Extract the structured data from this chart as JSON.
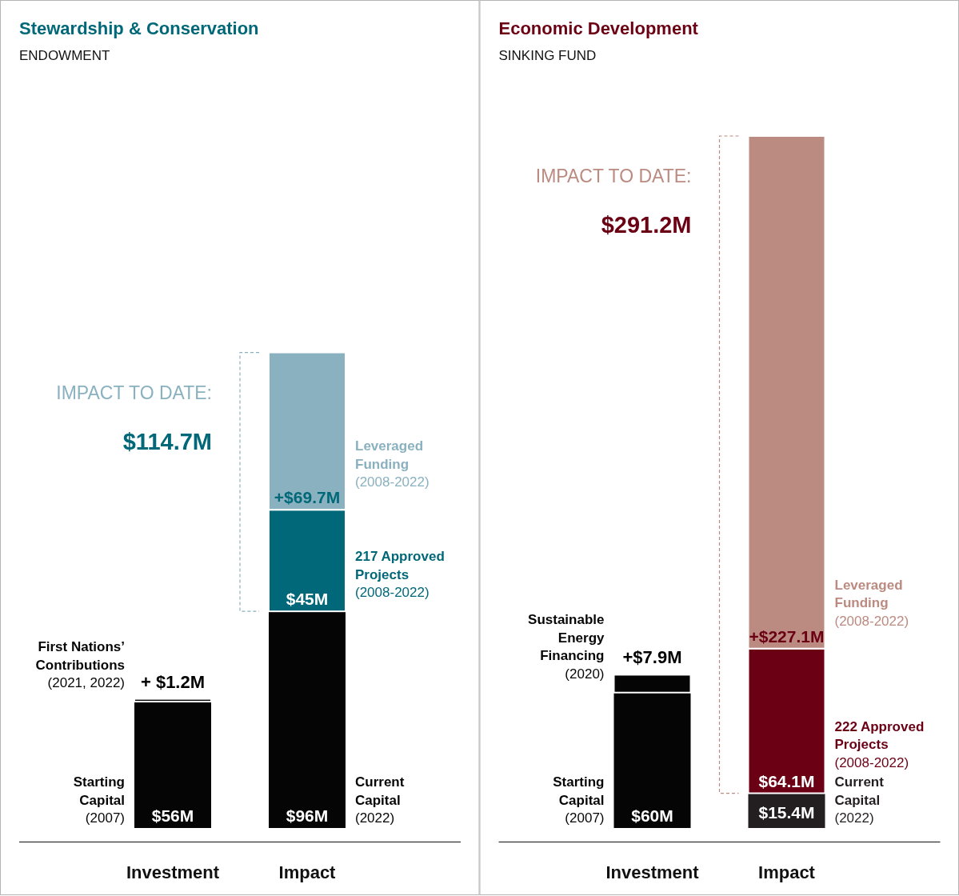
{
  "chart_data": [
    {
      "type": "bar",
      "title": "Stewardship & Conservation",
      "subtitle": "ENDOWMENT",
      "categories": [
        "Investment",
        "Impact"
      ],
      "stacked": true,
      "annotations": [
        "IMPACT TO DATE:",
        "$114.7M"
      ],
      "series": [
        {
          "name": "Starting Capital (2007)",
          "color": "#050505",
          "values": [
            56,
            null
          ],
          "value_labels": [
            "$56M",
            null
          ]
        },
        {
          "name": "Current Capital (2022)",
          "color": "#050505",
          "values": [
            null,
            96
          ],
          "value_labels": [
            null,
            "$96M"
          ]
        },
        {
          "name": "First Nations’ Contributions (2021, 2022)",
          "color": "#050505",
          "values": [
            1.2,
            null
          ],
          "value_labels": [
            "+ $1.2M",
            null
          ]
        },
        {
          "name": "217 Approved Projects (2008-2022)",
          "color": "#006878",
          "values": [
            null,
            45
          ],
          "value_labels": [
            null,
            "$45M"
          ]
        },
        {
          "name": "Leveraged Funding (2008-2022)",
          "color": "#8ab1bf",
          "values": [
            null,
            69.7
          ],
          "value_labels": [
            null,
            "+$69.7M"
          ]
        }
      ]
    },
    {
      "type": "bar",
      "title": "Economic Development",
      "subtitle": "SINKING FUND",
      "categories": [
        "Investment",
        "Impact"
      ],
      "stacked": true,
      "annotations": [
        "IMPACT TO DATE:",
        "$291.2M"
      ],
      "series": [
        {
          "name": "Starting Capital (2007)",
          "color": "#050505",
          "values": [
            60,
            null
          ],
          "value_labels": [
            "$60M",
            null
          ]
        },
        {
          "name": "Current Capital (2022)",
          "color": "#231f20",
          "values": [
            null,
            15.4
          ],
          "value_labels": [
            null,
            "$15.4M"
          ]
        },
        {
          "name": "Sustainable Energy Financing (2020)",
          "color": "#050505",
          "values": [
            7.9,
            null
          ],
          "value_labels": [
            "+$7.9M",
            null
          ]
        },
        {
          "name": "222 Approved Projects (2008-2022)",
          "color": "#6b0015",
          "values": [
            null,
            64.1
          ],
          "value_labels": [
            null,
            "$64.1M"
          ]
        },
        {
          "name": "Leveraged Funding (2008-2022)",
          "color": "#bb8a80",
          "values": [
            null,
            227.1
          ],
          "value_labels": [
            null,
            "+$227.1M"
          ]
        }
      ]
    }
  ]
}
